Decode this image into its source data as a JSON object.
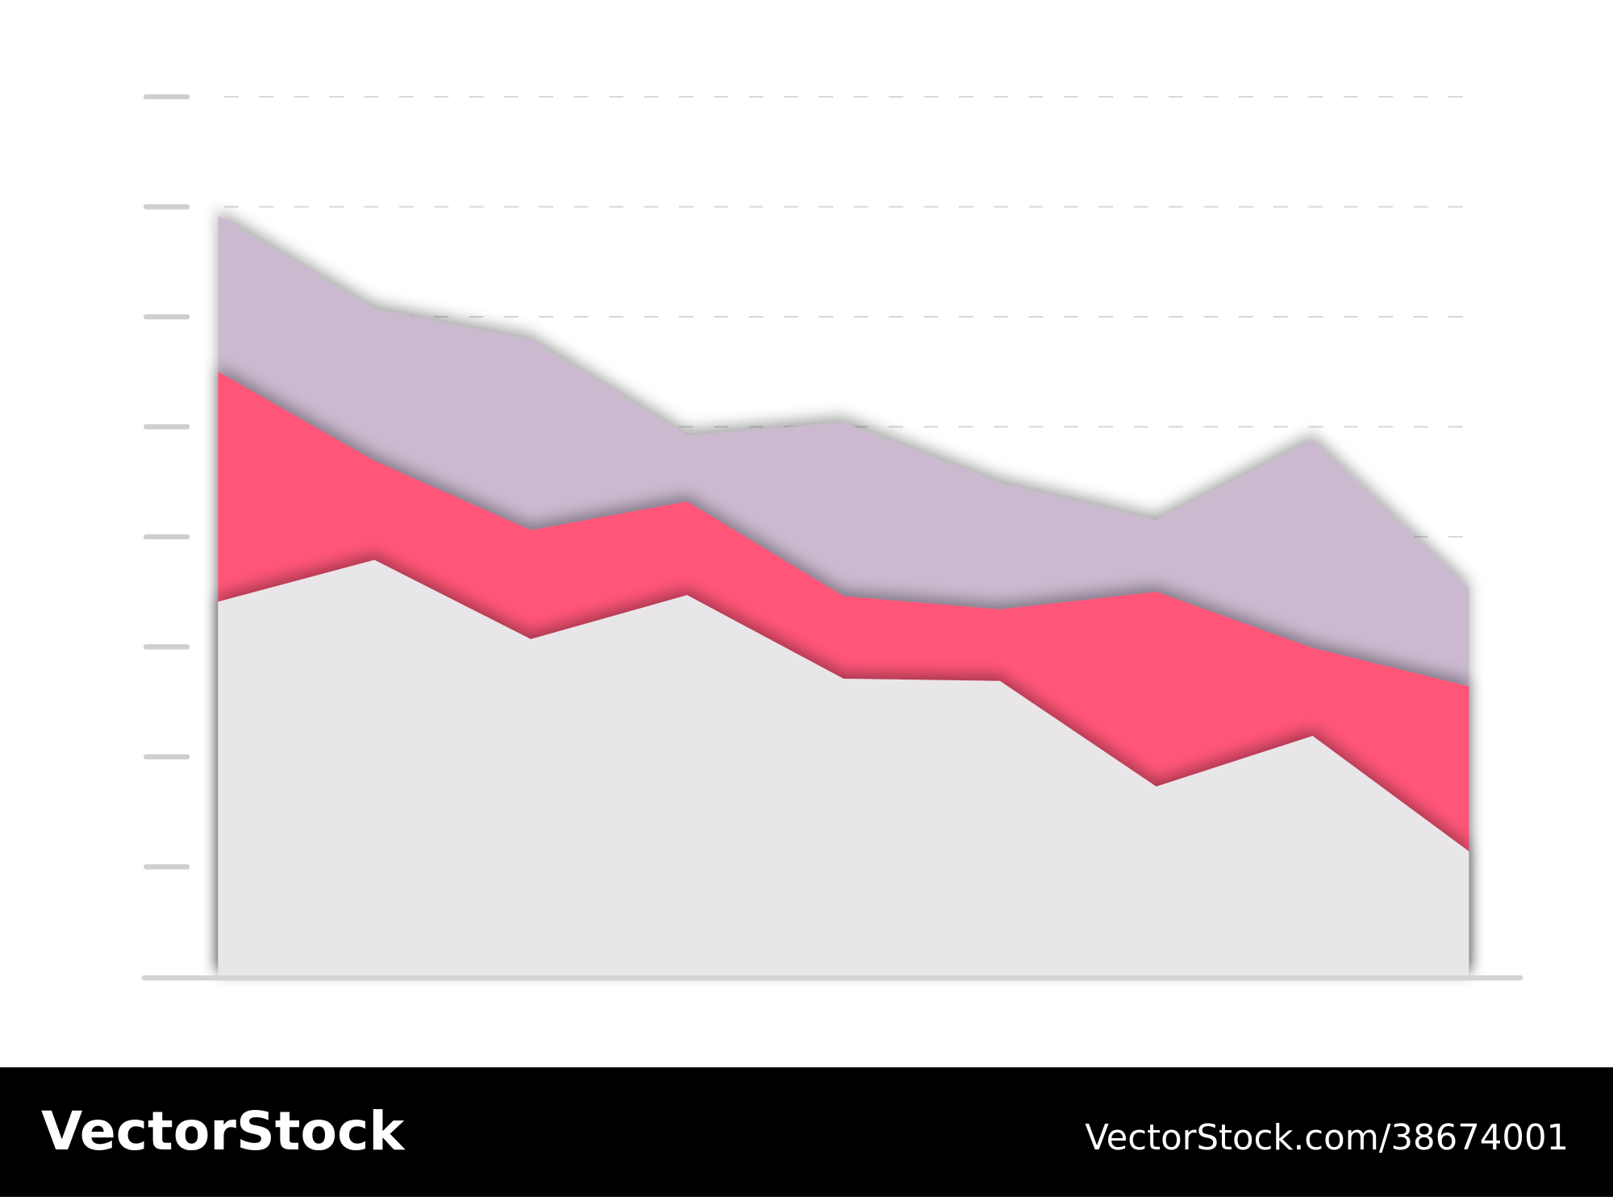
{
  "chart_data": {
    "type": "stacked-area",
    "categories": [
      null,
      null,
      null,
      null,
      null,
      null,
      null,
      null,
      null
    ],
    "series": [
      {
        "color": "#e8e6e9",
        "values": [
          3.41,
          3.79,
          3.07,
          3.47,
          2.71,
          2.69,
          1.73,
          2.19,
          1.14
        ]
      },
      {
        "color": "#ff5478",
        "values": [
          2.09,
          0.9,
          0.99,
          0.85,
          0.75,
          0.65,
          1.77,
          0.8,
          1.5
        ]
      },
      {
        "color": "#cab9cf",
        "values": [
          1.42,
          1.38,
          1.73,
          0.6,
          1.58,
          1.15,
          0.65,
          1.89,
          0.89
        ]
      }
    ],
    "ylim": [
      0,
      8
    ],
    "yticks": [
      1,
      2,
      3,
      4,
      5,
      6,
      7,
      8
    ],
    "grid": true
  },
  "footer": {
    "brand": "VectorStock",
    "url": "VectorStock.com/38674001"
  }
}
